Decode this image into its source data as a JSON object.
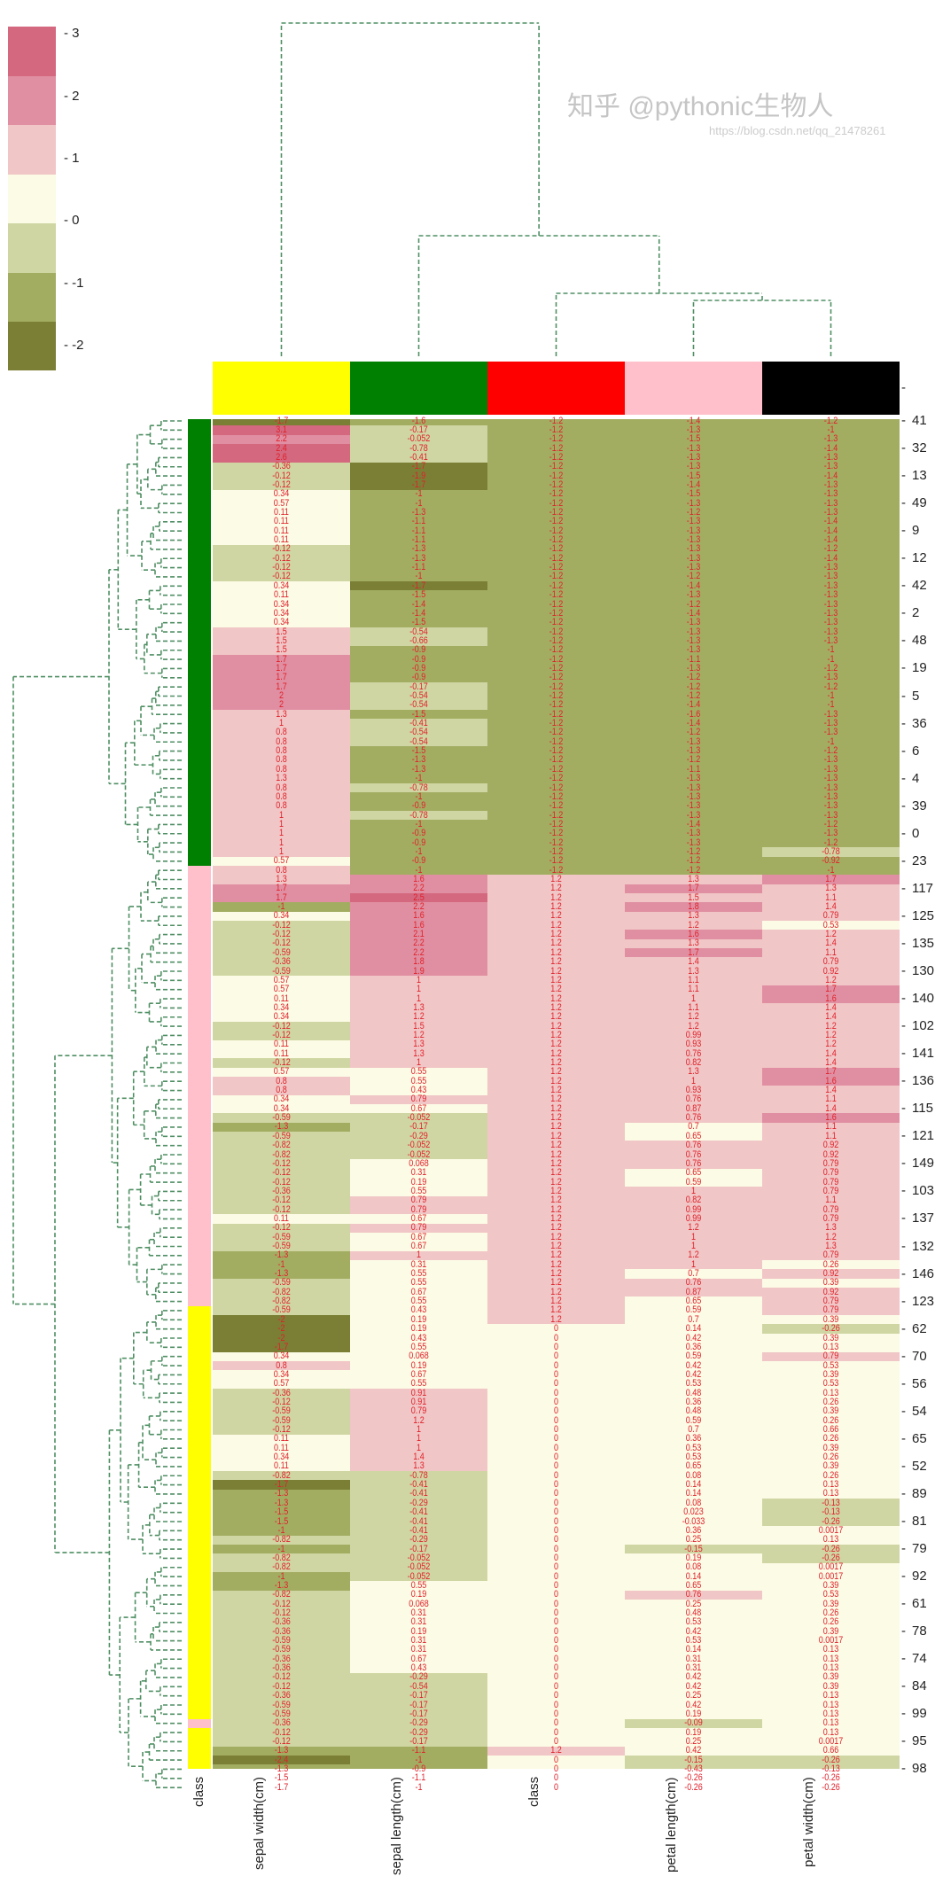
{
  "chart_data": {
    "type": "heatmap",
    "subtype": "clustermap",
    "annotated": true,
    "columns": [
      "sepal width(cm)",
      "sepal length(cm)",
      "class",
      "petal length(cm)",
      "petal width(cm)"
    ],
    "column_colors": [
      "#ffff00",
      "#008000",
      "#ff0000",
      "#ffc0cb",
      "#000000"
    ],
    "row_colors_label": "class",
    "row_color_runs": [
      [
        "#008000",
        49
      ],
      [
        "#ffc0cb",
        48
      ],
      [
        "#ffff00",
        45
      ],
      [
        "#ffc0cb",
        1
      ],
      [
        "#ffff00",
        7
      ]
    ],
    "row_labels": [
      "41",
      "32",
      "13",
      "49",
      "9",
      "12",
      "42",
      "2",
      "48",
      "19",
      "5",
      "36",
      "6",
      "4",
      "39",
      "0",
      "23",
      "117",
      "125",
      "135",
      "130",
      "140",
      "102",
      "141",
      "136",
      "115",
      "121",
      "149",
      "103",
      "137",
      "132",
      "146",
      "123",
      "62",
      "70",
      "56",
      "54",
      "65",
      "52",
      "89",
      "81",
      "79",
      "92",
      "61",
      "78",
      "74",
      "84",
      "99",
      "95",
      "98"
    ],
    "colorbar": {
      "ticks": [
        3,
        2,
        1,
        0,
        -1,
        -2
      ],
      "vmin": -2.4,
      "vmax": 3.12,
      "colors": [
        "#7a7f35",
        "#a3ad62",
        "#d0d6a3",
        "#fcfbe6",
        "#f0c6c6",
        "#e08fa2",
        "#d4687e"
      ]
    },
    "annotation_color": "#e0202a",
    "dendrogram_color": "#4f8f63",
    "rows": [
      [
        -1.7,
        -1.6,
        -1.2,
        -1.4,
        -1.2
      ],
      [
        3.1,
        -0.17,
        -1.2,
        -1.3,
        -1
      ],
      [
        2.2,
        -0.052,
        -1.2,
        -1.5,
        -1.3
      ],
      [
        2.4,
        -0.78,
        -1.2,
        -1.3,
        -1.4
      ],
      [
        2.6,
        -0.41,
        -1.2,
        -1.3,
        -1.3
      ],
      [
        -0.36,
        -1.7,
        -1.2,
        -1.3,
        -1.3
      ],
      [
        -0.12,
        -1.9,
        -1.2,
        -1.5,
        -1.4
      ],
      [
        -0.12,
        -1.7,
        -1.2,
        -1.4,
        -1.3
      ],
      [
        0.34,
        -1,
        -1.2,
        -1.5,
        -1.3
      ],
      [
        0.57,
        -1,
        -1.2,
        -1.3,
        -1.3
      ],
      [
        0.11,
        -1.3,
        -1.2,
        -1.2,
        -1.3
      ],
      [
        0.11,
        -1.1,
        -1.2,
        -1.3,
        -1.4
      ],
      [
        0.11,
        -1.1,
        -1.2,
        -1.3,
        -1.4
      ],
      [
        0.11,
        -1.1,
        -1.2,
        -1.3,
        -1.4
      ],
      [
        -0.12,
        -1.3,
        -1.2,
        -1.3,
        -1.2
      ],
      [
        -0.12,
        -1.3,
        -1.2,
        -1.3,
        -1.4
      ],
      [
        -0.12,
        -1.1,
        -1.2,
        -1.3,
        -1.3
      ],
      [
        -0.12,
        -1,
        -1.2,
        -1.2,
        -1.3
      ],
      [
        0.34,
        -1.7,
        -1.2,
        -1.4,
        -1.3
      ],
      [
        0.11,
        -1.5,
        -1.2,
        -1.3,
        -1.3
      ],
      [
        0.34,
        -1.4,
        -1.2,
        -1.2,
        -1.3
      ],
      [
        0.34,
        -1.4,
        -1.2,
        -1.4,
        -1.3
      ],
      [
        0.34,
        -1.5,
        -1.2,
        -1.3,
        -1.3
      ],
      [
        1.5,
        -0.54,
        -1.2,
        -1.3,
        -1.3
      ],
      [
        1.5,
        -0.66,
        -1.2,
        -1.3,
        -1.3
      ],
      [
        1.5,
        -0.9,
        -1.2,
        -1.3,
        -1
      ],
      [
        1.7,
        -0.9,
        -1.2,
        -1.1,
        -1
      ],
      [
        1.7,
        -0.9,
        -1.2,
        -1.3,
        -1.2
      ],
      [
        1.7,
        -0.9,
        -1.2,
        -1.2,
        -1.3
      ],
      [
        1.7,
        -0.17,
        -1.2,
        -1.2,
        -1.2
      ],
      [
        2,
        -0.54,
        -1.2,
        -1.2,
        -1
      ],
      [
        2,
        -0.54,
        -1.2,
        -1.4,
        -1
      ],
      [
        1.3,
        -1.5,
        -1.2,
        -1.6,
        -1.3
      ],
      [
        1,
        -0.41,
        -1.2,
        -1.4,
        -1.3
      ],
      [
        0.8,
        -0.54,
        -1.2,
        -1.2,
        -1.3
      ],
      [
        0.8,
        -0.54,
        -1.2,
        -1.3,
        -1
      ],
      [
        0.8,
        -1.5,
        -1.2,
        -1.3,
        -1.2
      ],
      [
        0.8,
        -1.3,
        -1.2,
        -1.2,
        -1.3
      ],
      [
        0.8,
        -1.3,
        -1.2,
        -1.1,
        -1.3
      ],
      [
        1.3,
        -1,
        -1.2,
        -1.3,
        -1.3
      ],
      [
        0.8,
        -0.78,
        -1.2,
        -1.3,
        -1.3
      ],
      [
        0.8,
        -1,
        -1.2,
        -1.3,
        -1.3
      ],
      [
        0.8,
        -0.9,
        -1.2,
        -1.3,
        -1.3
      ],
      [
        1,
        -0.78,
        -1.2,
        -1.3,
        -1.3
      ],
      [
        1,
        -1,
        -1.2,
        -1.4,
        -1.2
      ],
      [
        1,
        -0.9,
        -1.2,
        -1.3,
        -1.3
      ],
      [
        1,
        -0.9,
        -1.2,
        -1.3,
        -1.2
      ],
      [
        1,
        -1,
        -1.2,
        -1.2,
        -0.78
      ],
      [
        0.57,
        -0.9,
        -1.2,
        -1.2,
        -0.92
      ],
      [
        0.8,
        -1,
        -1.2,
        -1.2,
        -1
      ],
      [
        1.3,
        1.6,
        1.2,
        1.3,
        1.7
      ],
      [
        1.7,
        2.2,
        1.2,
        1.7,
        1.3
      ],
      [
        1.7,
        2.5,
        1.2,
        1.5,
        1.1
      ],
      [
        -1,
        2.2,
        1.2,
        1.8,
        1.4
      ],
      [
        0.34,
        1.6,
        1.2,
        1.3,
        0.79
      ],
      [
        -0.12,
        1.6,
        1.2,
        1.2,
        0.53
      ],
      [
        -0.12,
        2.1,
        1.2,
        1.6,
        1.2
      ],
      [
        -0.12,
        2.2,
        1.2,
        1.3,
        1.4
      ],
      [
        -0.59,
        2.2,
        1.2,
        1.7,
        1.1
      ],
      [
        -0.36,
        1.8,
        1.2,
        1.4,
        0.79
      ],
      [
        -0.59,
        1.9,
        1.2,
        1.3,
        0.92
      ],
      [
        0.57,
        1,
        1.2,
        1.1,
        1.2
      ],
      [
        0.57,
        1,
        1.2,
        1.1,
        1.7
      ],
      [
        0.11,
        1,
        1.2,
        1,
        1.6
      ],
      [
        0.34,
        1.3,
        1.2,
        1.1,
        1.4
      ],
      [
        0.34,
        1.2,
        1.2,
        1.2,
        1.4
      ],
      [
        -0.12,
        1.5,
        1.2,
        1.2,
        1.2
      ],
      [
        -0.12,
        1.2,
        1.2,
        0.99,
        1.2
      ],
      [
        0.11,
        1.3,
        1.2,
        0.93,
        1.2
      ],
      [
        0.11,
        1.3,
        1.2,
        0.76,
        1.4
      ],
      [
        -0.12,
        1,
        1.2,
        0.82,
        1.4
      ],
      [
        0.57,
        0.55,
        1.2,
        1.3,
        1.7
      ],
      [
        0.8,
        0.55,
        1.2,
        1,
        1.6
      ],
      [
        0.8,
        0.43,
        1.2,
        0.93,
        1.4
      ],
      [
        0.34,
        0.79,
        1.2,
        0.76,
        1.1
      ],
      [
        0.34,
        0.67,
        1.2,
        0.87,
        1.4
      ],
      [
        -0.59,
        -0.052,
        1.2,
        0.76,
        1.6
      ],
      [
        -1.3,
        -0.17,
        1.2,
        0.7,
        1.1
      ],
      [
        -0.59,
        -0.29,
        1.2,
        0.65,
        1.1
      ],
      [
        -0.82,
        -0.052,
        1.2,
        0.76,
        0.92
      ],
      [
        -0.82,
        -0.052,
        1.2,
        0.76,
        0.92
      ],
      [
        -0.12,
        0.068,
        1.2,
        0.76,
        0.79
      ],
      [
        -0.12,
        0.31,
        1.2,
        0.65,
        0.79
      ],
      [
        -0.12,
        0.19,
        1.2,
        0.59,
        0.79
      ],
      [
        -0.36,
        0.55,
        1.2,
        1,
        0.79
      ],
      [
        -0.12,
        0.79,
        1.2,
        0.82,
        1.1
      ],
      [
        -0.12,
        0.79,
        1.2,
        0.99,
        0.79
      ],
      [
        0.11,
        0.67,
        1.2,
        0.99,
        0.79
      ],
      [
        -0.12,
        0.79,
        1.2,
        1.2,
        1.3
      ],
      [
        -0.59,
        0.67,
        1.2,
        1,
        1.2
      ],
      [
        -0.59,
        0.67,
        1.2,
        1,
        1.3
      ],
      [
        -1.3,
        1,
        1.2,
        1.2,
        0.79
      ],
      [
        -1,
        0.31,
        1.2,
        1,
        0.26
      ],
      [
        -1.3,
        0.55,
        1.2,
        0.7,
        0.92
      ],
      [
        -0.59,
        0.55,
        1.2,
        0.76,
        0.39
      ],
      [
        -0.82,
        0.67,
        1.2,
        0.87,
        0.92
      ],
      [
        -0.82,
        0.55,
        1.2,
        0.65,
        0.79
      ],
      [
        -0.59,
        0.43,
        1.2,
        0.59,
        0.79
      ],
      [
        -2,
        0.19,
        1.2,
        0.7,
        0.39
      ],
      [
        -2,
        0.19,
        0,
        0.14,
        -0.26
      ],
      [
        -2,
        0.43,
        0,
        0.42,
        0.39
      ],
      [
        -1.7,
        0.55,
        0,
        0.36,
        0.13
      ],
      [
        0.34,
        0.068,
        0,
        0.59,
        0.79
      ],
      [
        0.8,
        0.19,
        0,
        0.42,
        0.53
      ],
      [
        0.34,
        0.67,
        0,
        0.42,
        0.39
      ],
      [
        0.57,
        0.55,
        0,
        0.53,
        0.53
      ],
      [
        -0.36,
        0.91,
        0,
        0.48,
        0.13
      ],
      [
        -0.12,
        0.91,
        0,
        0.36,
        0.26
      ],
      [
        -0.59,
        0.79,
        0,
        0.48,
        0.39
      ],
      [
        -0.59,
        1.2,
        0,
        0.59,
        0.26
      ],
      [
        -0.12,
        1,
        0,
        0.7,
        0.66
      ],
      [
        0.11,
        1,
        0,
        0.36,
        0.26
      ],
      [
        0.11,
        1,
        0,
        0.53,
        0.39
      ],
      [
        0.34,
        1.4,
        0,
        0.53,
        0.26
      ],
      [
        0.11,
        1.3,
        0,
        0.65,
        0.39
      ],
      [
        -0.82,
        -0.78,
        0,
        0.08,
        0.26
      ],
      [
        -1.7,
        -0.41,
        0,
        0.14,
        0.13
      ],
      [
        -1.3,
        -0.41,
        0,
        0.14,
        0.13
      ],
      [
        -1.3,
        -0.29,
        0,
        0.08,
        -0.13
      ],
      [
        -1.5,
        -0.41,
        0,
        0.023,
        -0.13
      ],
      [
        -1.5,
        -0.41,
        0,
        -0.033,
        -0.26
      ],
      [
        -1,
        -0.41,
        0,
        0.36,
        0.0017
      ],
      [
        -0.82,
        -0.29,
        0,
        0.25,
        0.13
      ],
      [
        -1,
        -0.17,
        0,
        -0.15,
        -0.26
      ],
      [
        -0.82,
        -0.052,
        0,
        0.19,
        -0.26
      ],
      [
        -0.82,
        -0.052,
        0,
        0.08,
        0.0017
      ],
      [
        -1,
        -0.052,
        0,
        0.14,
        0.0017
      ],
      [
        -1.3,
        0.55,
        0,
        0.65,
        0.39
      ],
      [
        -0.82,
        0.19,
        0,
        0.76,
        0.53
      ],
      [
        -0.12,
        0.068,
        0,
        0.25,
        0.39
      ],
      [
        -0.12,
        0.31,
        0,
        0.48,
        0.26
      ],
      [
        -0.36,
        0.31,
        0,
        0.53,
        0.26
      ],
      [
        -0.36,
        0.19,
        0,
        0.42,
        0.39
      ],
      [
        -0.59,
        0.31,
        0,
        0.53,
        0.0017
      ],
      [
        -0.59,
        0.31,
        0,
        0.14,
        0.13
      ],
      [
        -0.36,
        0.67,
        0,
        0.31,
        0.13
      ],
      [
        -0.36,
        0.43,
        0,
        0.31,
        0.13
      ],
      [
        -0.12,
        -0.29,
        0,
        0.42,
        0.39
      ],
      [
        -0.12,
        -0.54,
        0,
        0.42,
        0.39
      ],
      [
        -0.36,
        -0.17,
        0,
        0.25,
        0.13
      ],
      [
        -0.59,
        -0.17,
        0,
        0.42,
        0.13
      ],
      [
        -0.59,
        -0.17,
        0,
        0.19,
        0.13
      ],
      [
        -0.36,
        -0.29,
        0,
        -0.09,
        0.13
      ],
      [
        -0.12,
        -0.29,
        0,
        0.19,
        0.13
      ],
      [
        -0.12,
        -0.17,
        0,
        0.25,
        0.0017
      ],
      [
        -1.3,
        -1.1,
        1.2,
        0.42,
        0.66
      ],
      [
        -2.4,
        -1,
        0,
        -0.15,
        -0.26
      ],
      [
        -1.3,
        -0.9,
        0,
        -0.43,
        -0.13
      ],
      [
        -1.5,
        -1.1,
        0,
        -0.26,
        -0.26
      ],
      [
        -1.7,
        -1,
        0,
        -0.26,
        -0.26
      ]
    ]
  },
  "watermark": {
    "text": "知乎 @pythonic生物人",
    "url": "https://blog.csdn.net/qq_21478261"
  }
}
